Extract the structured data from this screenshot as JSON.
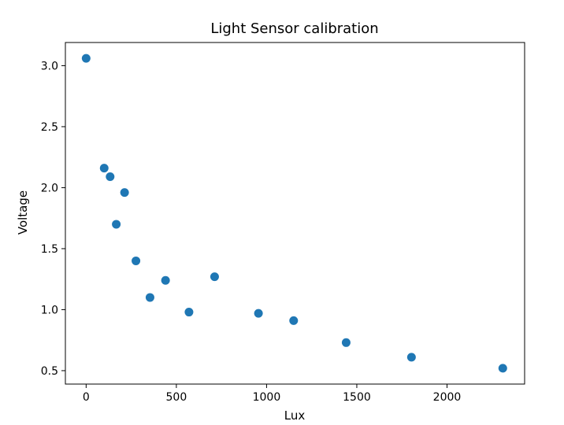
{
  "chart_data": {
    "type": "scatter",
    "title": "Light Sensor calibration",
    "xlabel": "Lux",
    "ylabel": "Voltage",
    "xlim": [
      -115,
      2430
    ],
    "ylim": [
      0.39,
      3.19
    ],
    "xticks": [
      0,
      500,
      1000,
      1500,
      2000
    ],
    "yticks": [
      0.5,
      1.0,
      1.5,
      2.0,
      2.5,
      3.0
    ],
    "xtick_labels": [
      "0",
      "500",
      "1000",
      "1500",
      "2000"
    ],
    "ytick_labels": [
      "0.5",
      "1.0",
      "1.5",
      "2.0",
      "2.5",
      "3.0"
    ],
    "grid": false,
    "legend": "none",
    "marker_color": "#1f77b4",
    "points": [
      {
        "x": 0,
        "y": 3.06
      },
      {
        "x": 100,
        "y": 2.16
      },
      {
        "x": 133,
        "y": 2.09
      },
      {
        "x": 167,
        "y": 1.7
      },
      {
        "x": 213,
        "y": 1.96
      },
      {
        "x": 276,
        "y": 1.4
      },
      {
        "x": 354,
        "y": 1.1
      },
      {
        "x": 440,
        "y": 1.24
      },
      {
        "x": 570,
        "y": 0.98
      },
      {
        "x": 712,
        "y": 1.27
      },
      {
        "x": 955,
        "y": 0.97
      },
      {
        "x": 1150,
        "y": 0.91
      },
      {
        "x": 1441,
        "y": 0.73
      },
      {
        "x": 1803,
        "y": 0.61
      },
      {
        "x": 2309,
        "y": 0.52
      }
    ]
  }
}
